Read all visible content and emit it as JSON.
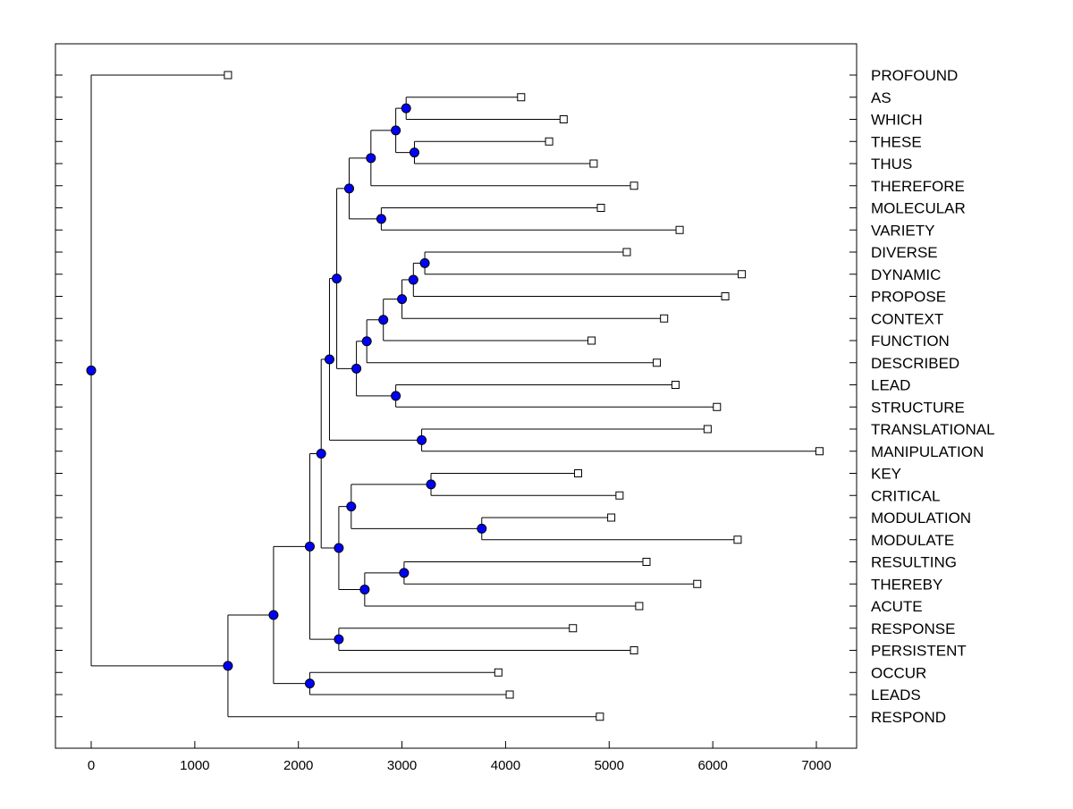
{
  "chart_data": {
    "type": "dendrogram",
    "title": "",
    "xlabel": "",
    "ylabel": "",
    "xlim": [
      -350,
      7400
    ],
    "xticks": [
      0,
      1000,
      2000,
      3000,
      4000,
      5000,
      6000,
      7000
    ],
    "grid": false,
    "legend": "none",
    "colors": {
      "internal_node": "#0000ff",
      "internal_node_stroke": "#000000",
      "leaf_node": "#ffffff",
      "line": "#000000"
    },
    "leaves": [
      {
        "label": "PROFOUND",
        "x": 1320
      },
      {
        "label": "AS",
        "x": 4150
      },
      {
        "label": "WHICH",
        "x": 4560
      },
      {
        "label": "THESE",
        "x": 4420
      },
      {
        "label": "THUS",
        "x": 4850
      },
      {
        "label": "THEREFORE",
        "x": 5240
      },
      {
        "label": "MOLECULAR",
        "x": 4920
      },
      {
        "label": "VARIETY",
        "x": 5680
      },
      {
        "label": "DIVERSE",
        "x": 5170
      },
      {
        "label": "DYNAMIC",
        "x": 6280
      },
      {
        "label": "PROPOSE",
        "x": 6120
      },
      {
        "label": "CONTEXT",
        "x": 5530
      },
      {
        "label": "FUNCTION",
        "x": 4830
      },
      {
        "label": "DESCRIBED",
        "x": 5460
      },
      {
        "label": "LEAD",
        "x": 5640
      },
      {
        "label": "STRUCTURE",
        "x": 6040
      },
      {
        "label": "TRANSLATIONAL",
        "x": 5950
      },
      {
        "label": "MANIPULATION",
        "x": 7030
      },
      {
        "label": "KEY",
        "x": 4700
      },
      {
        "label": "CRITICAL",
        "x": 5100
      },
      {
        "label": "MODULATION",
        "x": 5020
      },
      {
        "label": "MODULATE",
        "x": 6240
      },
      {
        "label": "RESULTING",
        "x": 5360
      },
      {
        "label": "THEREBY",
        "x": 5850
      },
      {
        "label": "ACUTE",
        "x": 5290
      },
      {
        "label": "RESPONSE",
        "x": 4650
      },
      {
        "label": "PERSISTENT",
        "x": 5240
      },
      {
        "label": "OCCUR",
        "x": 3930
      },
      {
        "label": "LEADS",
        "x": 4040
      },
      {
        "label": "RESPOND",
        "x": 4910
      }
    ],
    "merges": [
      {
        "id": "n_as_which",
        "x": 3040,
        "children": [
          1,
          2
        ]
      },
      {
        "id": "n_these_thus",
        "x": 3120,
        "children": [
          3,
          4
        ]
      },
      {
        "id": "n_aswhich_thesethus",
        "x": 2940,
        "children": [
          "n_as_which",
          "n_these_thus"
        ]
      },
      {
        "id": "n_plus_therefore",
        "x": 2700,
        "children": [
          "n_aswhich_thesethus",
          5
        ]
      },
      {
        "id": "n_molecular_variety",
        "x": 2800,
        "children": [
          6,
          7
        ]
      },
      {
        "id": "n_group_a",
        "x": 2490,
        "children": [
          "n_plus_therefore",
          "n_molecular_variety"
        ]
      },
      {
        "id": "n_diverse_dynamic",
        "x": 3220,
        "children": [
          8,
          9
        ]
      },
      {
        "id": "n_plus_propose",
        "x": 3110,
        "children": [
          "n_diverse_dynamic",
          10
        ]
      },
      {
        "id": "n_plus_context",
        "x": 3000,
        "children": [
          "n_plus_propose",
          11
        ]
      },
      {
        "id": "n_plus_function",
        "x": 2820,
        "children": [
          "n_plus_context",
          12
        ]
      },
      {
        "id": "n_plus_described",
        "x": 2660,
        "children": [
          "n_plus_function",
          13
        ]
      },
      {
        "id": "n_lead_structure",
        "x": 2940,
        "children": [
          14,
          15
        ]
      },
      {
        "id": "n_group_b",
        "x": 2560,
        "children": [
          "n_plus_described",
          "n_lead_structure"
        ]
      },
      {
        "id": "n_group_ab",
        "x": 2370,
        "children": [
          "n_group_a",
          "n_group_b"
        ]
      },
      {
        "id": "n_translational_manipulation",
        "x": 3190,
        "children": [
          16,
          17
        ]
      },
      {
        "id": "n_upper",
        "x": 2300,
        "children": [
          "n_group_ab",
          "n_translational_manipulation"
        ]
      },
      {
        "id": "n_key_critical",
        "x": 3280,
        "children": [
          18,
          19
        ]
      },
      {
        "id": "n_modulation_modulate",
        "x": 3770,
        "children": [
          20,
          21
        ]
      },
      {
        "id": "n_group_c",
        "x": 2510,
        "children": [
          "n_key_critical",
          "n_modulation_modulate"
        ]
      },
      {
        "id": "n_resulting_thereby",
        "x": 3020,
        "children": [
          22,
          23
        ]
      },
      {
        "id": "n_plus_acute",
        "x": 2640,
        "children": [
          "n_resulting_thereby",
          24
        ]
      },
      {
        "id": "n_group_d",
        "x": 2390,
        "children": [
          "n_group_c",
          "n_plus_acute"
        ]
      },
      {
        "id": "n_mid",
        "x": 2220,
        "children": [
          "n_upper",
          "n_group_d"
        ]
      },
      {
        "id": "n_response_persistent",
        "x": 2390,
        "children": [
          25,
          26
        ]
      },
      {
        "id": "n_big",
        "x": 2110,
        "children": [
          "n_mid",
          "n_response_persistent"
        ]
      },
      {
        "id": "n_occur_leads",
        "x": 2110,
        "children": [
          27,
          28
        ]
      },
      {
        "id": "n_big2",
        "x": 1760,
        "children": [
          "n_big",
          "n_occur_leads"
        ]
      },
      {
        "id": "n_with_respond",
        "x": 1320,
        "children": [
          "n_big2",
          29
        ]
      },
      {
        "id": "root",
        "x": 0,
        "children": [
          0,
          "n_with_respond"
        ]
      }
    ]
  }
}
